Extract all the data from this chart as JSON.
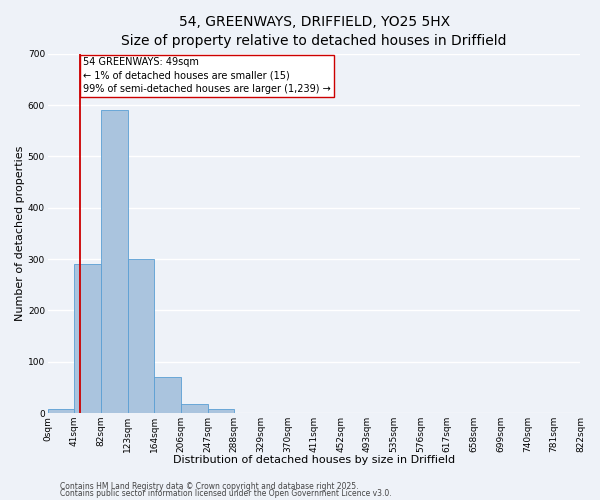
{
  "title1": "54, GREENWAYS, DRIFFIELD, YO25 5HX",
  "title2": "Size of property relative to detached houses in Driffield",
  "xlabel": "Distribution of detached houses by size in Driffield",
  "ylabel": "Number of detached properties",
  "bin_labels": [
    "0sqm",
    "41sqm",
    "82sqm",
    "123sqm",
    "164sqm",
    "206sqm",
    "247sqm",
    "288sqm",
    "329sqm",
    "370sqm",
    "411sqm",
    "452sqm",
    "493sqm",
    "535sqm",
    "576sqm",
    "617sqm",
    "658sqm",
    "699sqm",
    "740sqm",
    "781sqm",
    "822sqm"
  ],
  "bar_heights": [
    8,
    290,
    590,
    300,
    70,
    17,
    8,
    0,
    0,
    0,
    0,
    0,
    0,
    0,
    0,
    0,
    0,
    0,
    0,
    0
  ],
  "bar_color": "#aac4de",
  "bar_edge_color": "#5a9fd4",
  "property_line_color": "#cc0000",
  "annotation_text": "54 GREENWAYS: 49sqm\n← 1% of detached houses are smaller (15)\n99% of semi-detached houses are larger (1,239) →",
  "annotation_box_color": "#ffffff",
  "annotation_box_edge": "#cc0000",
  "ylim": [
    0,
    700
  ],
  "yticks": [
    0,
    100,
    200,
    300,
    400,
    500,
    600,
    700
  ],
  "footer1": "Contains HM Land Registry data © Crown copyright and database right 2025.",
  "footer2": "Contains public sector information licensed under the Open Government Licence v3.0.",
  "bg_color": "#eef2f8",
  "grid_color": "#ffffff",
  "title1_fontsize": 10,
  "title2_fontsize": 9,
  "axis_label_fontsize": 8,
  "tick_fontsize": 6.5,
  "annotation_fontsize": 7,
  "footer_fontsize": 5.5
}
